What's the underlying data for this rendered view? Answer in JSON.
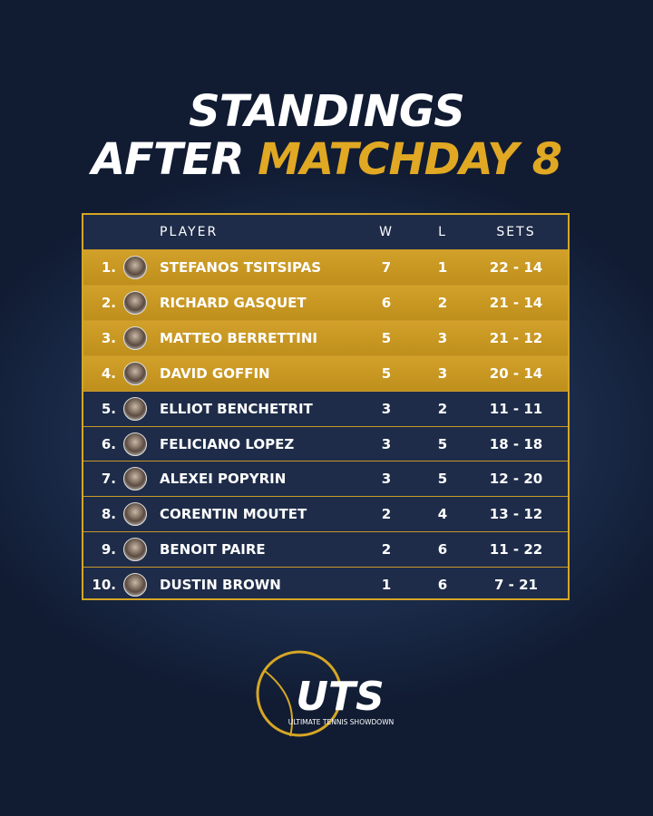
{
  "header": {
    "title_line1": "STANDINGS",
    "title_line2_a": "AFTER",
    "title_line2_b": "MATCHDAY 8"
  },
  "table": {
    "columns": [
      "PLAYER",
      "W",
      "L",
      "SETS"
    ],
    "rows": [
      {
        "rank": "1.",
        "player": "STEFANOS TSITSIPAS",
        "w": 7,
        "l": 1,
        "sets": "22 - 14"
      },
      {
        "rank": "2.",
        "player": "RICHARD GASQUET",
        "w": 6,
        "l": 2,
        "sets": "21 - 14"
      },
      {
        "rank": "3.",
        "player": "MATTEO BERRETTINI",
        "w": 5,
        "l": 3,
        "sets": "21 - 12"
      },
      {
        "rank": "4.",
        "player": "DAVID GOFFIN",
        "w": 5,
        "l": 3,
        "sets": "20 - 14"
      },
      {
        "rank": "5.",
        "player": "ELLIOT BENCHETRIT",
        "w": 3,
        "l": 2,
        "sets": "11 - 11"
      },
      {
        "rank": "6.",
        "player": "FELICIANO LOPEZ",
        "w": 3,
        "l": 5,
        "sets": "18 - 18"
      },
      {
        "rank": "7.",
        "player": "ALEXEI POPYRIN",
        "w": 3,
        "l": 5,
        "sets": "12 - 20"
      },
      {
        "rank": "8.",
        "player": "CORENTIN MOUTET",
        "w": 2,
        "l": 4,
        "sets": "13 - 12"
      },
      {
        "rank": "9.",
        "player": "BENOIT PAIRE",
        "w": 2,
        "l": 6,
        "sets": "11 - 22"
      },
      {
        "rank": "10.",
        "player": "DUSTIN BROWN",
        "w": 1,
        "l": 6,
        "sets": "7 - 21"
      }
    ]
  },
  "logo": {
    "mark": "UTS",
    "tagline": "ULTIMATE TENNIS SHOWDOWN"
  }
}
